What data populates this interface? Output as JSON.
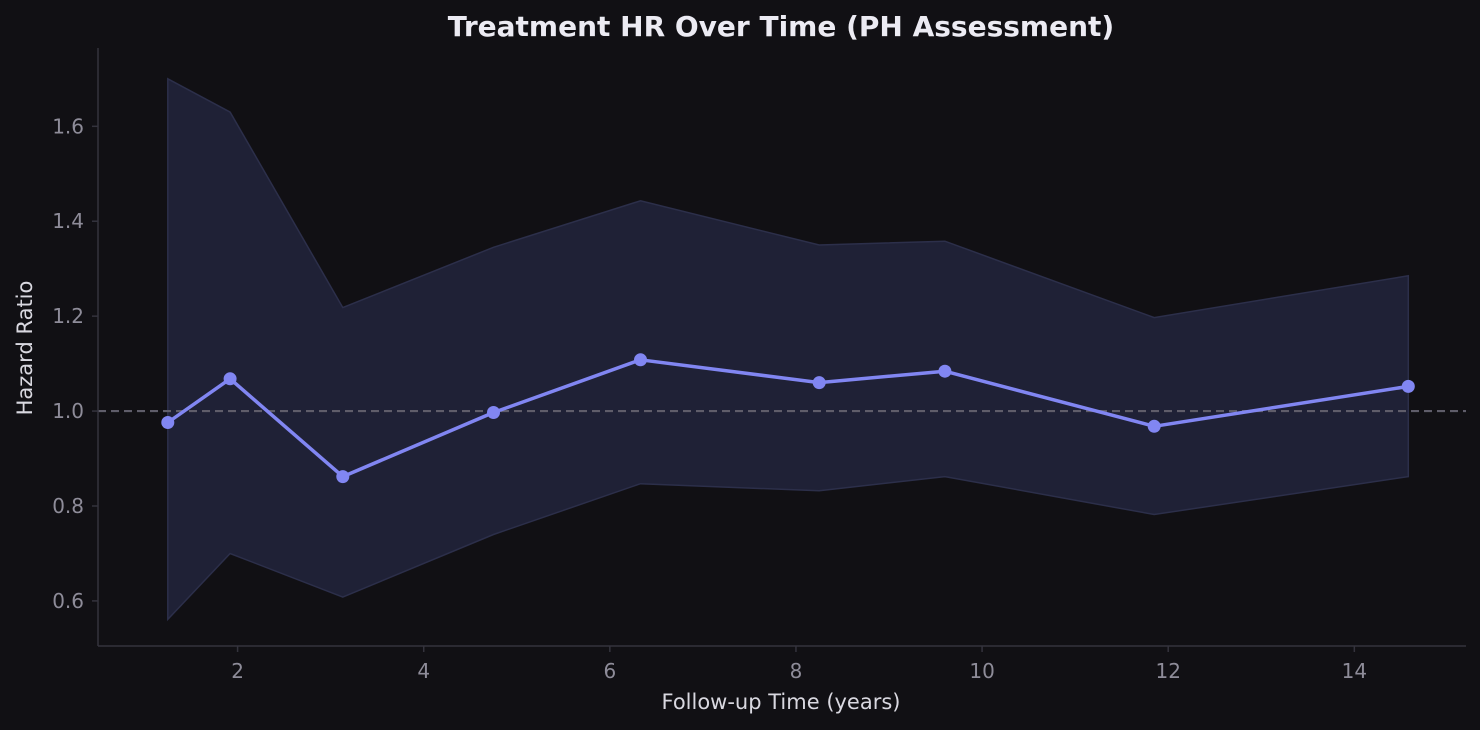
{
  "chart_data": {
    "type": "line",
    "title": "Treatment HR Over Time (PH Assessment)",
    "xlabel": "Follow-up Time (years)",
    "ylabel": "Hazard Ratio",
    "xlim": [
      0.5,
      15.2
    ],
    "ylim": [
      0.505,
      1.765
    ],
    "xticks": [
      2,
      4,
      6,
      8,
      10,
      12,
      14
    ],
    "yticks": [
      0.6,
      0.8,
      1.0,
      1.2,
      1.4,
      1.6
    ],
    "xtick_labels": [
      "2",
      "4",
      "6",
      "8",
      "10",
      "12",
      "14"
    ],
    "ytick_labels": [
      "0.6",
      "0.8",
      "1.0",
      "1.2",
      "1.4",
      "1.6"
    ],
    "reference_line": {
      "y": 1.0,
      "style": "dashed"
    },
    "grid": false,
    "legend": "none",
    "series": [
      {
        "x": [
          1.25,
          1.92,
          3.13,
          4.75,
          6.33,
          8.25,
          9.6,
          11.85,
          14.58
        ],
        "values": [
          0.976,
          1.068,
          0.862,
          0.997,
          1.108,
          1.06,
          1.084,
          0.968,
          1.052
        ],
        "ci_lower": [
          0.561,
          0.7,
          0.608,
          0.74,
          0.847,
          0.832,
          0.862,
          0.782,
          0.862
        ],
        "ci_upper": [
          1.7,
          1.63,
          1.218,
          1.345,
          1.443,
          1.35,
          1.358,
          1.197,
          1.285
        ]
      }
    ],
    "colors": {
      "background": "#111014",
      "line": "#8186f2",
      "band": "#1f2136",
      "band_edge": "#2c2f4a",
      "reference": "#5f5d6a",
      "axis": "#34333d"
    }
  }
}
